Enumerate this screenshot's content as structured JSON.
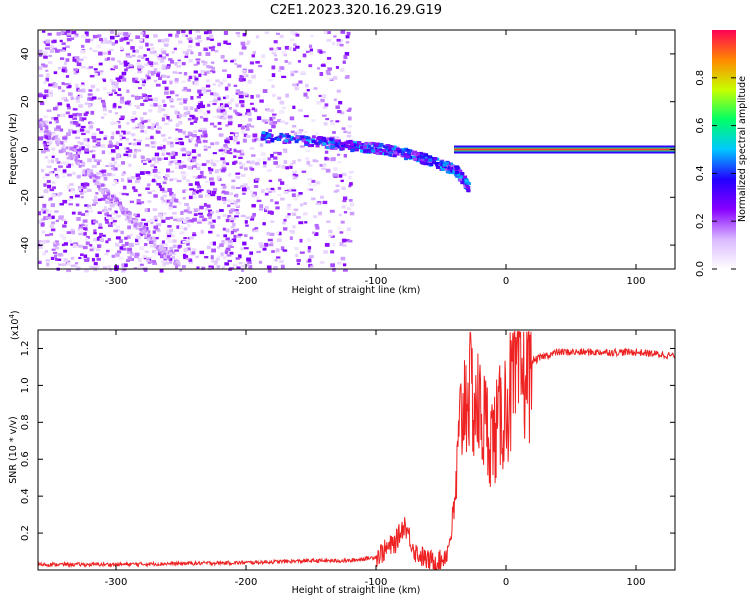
{
  "title": "C2E1.2023.320.16.29.G19",
  "chart_data": [
    {
      "type": "heatmap",
      "xlabel": "Height of straight line (km)",
      "ylabel": "Frequency (Hz)",
      "xlim": [
        -360,
        130
      ],
      "ylim": [
        -50,
        50
      ],
      "xticks": [
        -300,
        -200,
        -100,
        0,
        100
      ],
      "yticks": [
        -40,
        -20,
        0,
        20,
        40
      ],
      "colorbar": {
        "label": "Normalized spectral amplitude",
        "range": [
          0.0,
          1.0
        ],
        "ticks": [
          0.0,
          0.2,
          0.4,
          0.6,
          0.8
        ],
        "colormap": [
          "#ffffff",
          "#d9b8ff",
          "#8800ff",
          "#2200ff",
          "#00c8ff",
          "#00ff66",
          "#c8ff00",
          "#ff8800",
          "#ff0055"
        ]
      },
      "features": [
        {
          "name": "noise-region",
          "x_range": [
            -360,
            -120
          ],
          "amplitude": 0.15
        },
        {
          "name": "linear-trend",
          "x_range": [
            -360,
            -250
          ],
          "y_at_start": 12,
          "y_at_end": -50,
          "amplitude": 0.1
        },
        {
          "name": "converging-line",
          "points": [
            [
              -190,
              6
            ],
            [
              -150,
              4
            ],
            [
              -120,
              2
            ],
            [
              -100,
              1
            ],
            [
              -80,
              -1
            ],
            [
              -60,
              -4
            ],
            [
              -40,
              -8
            ],
            [
              -30,
              -15
            ]
          ],
          "amplitude": 0.3
        },
        {
          "name": "locked-signal",
          "x_range": [
            -40,
            130
          ],
          "y": 0,
          "amplitude": 0.95
        }
      ]
    },
    {
      "type": "line",
      "xlabel": "Height of straight line (km)",
      "ylabel": "SNR (10 * v/v)",
      "y_multiplier": "(x10",
      "y_multiplier_exp": "4",
      "y_multiplier_close": ")",
      "xlim": [
        -360,
        130
      ],
      "ylim": [
        0,
        1.3
      ],
      "xticks": [
        -300,
        -200,
        -100,
        0,
        100
      ],
      "yticks": [
        0.2,
        0.4,
        0.6,
        0.8,
        1.0,
        1.2
      ],
      "series": [
        {
          "color": "#ee2222",
          "x": [
            -360,
            -300,
            -200,
            -150,
            -120,
            -100,
            -85,
            -78,
            -70,
            -60,
            -50,
            -45,
            -40,
            -35,
            -30,
            -20,
            -10,
            0,
            10,
            20,
            30,
            40,
            60,
            80,
            100,
            130
          ],
          "y": [
            0.03,
            0.03,
            0.04,
            0.05,
            0.05,
            0.07,
            0.15,
            0.25,
            0.1,
            0.05,
            0.05,
            0.1,
            0.3,
            0.8,
            1.0,
            0.85,
            0.7,
            0.9,
            1.05,
            1.13,
            1.16,
            1.18,
            1.18,
            1.18,
            1.18,
            1.16
          ]
        }
      ]
    }
  ]
}
